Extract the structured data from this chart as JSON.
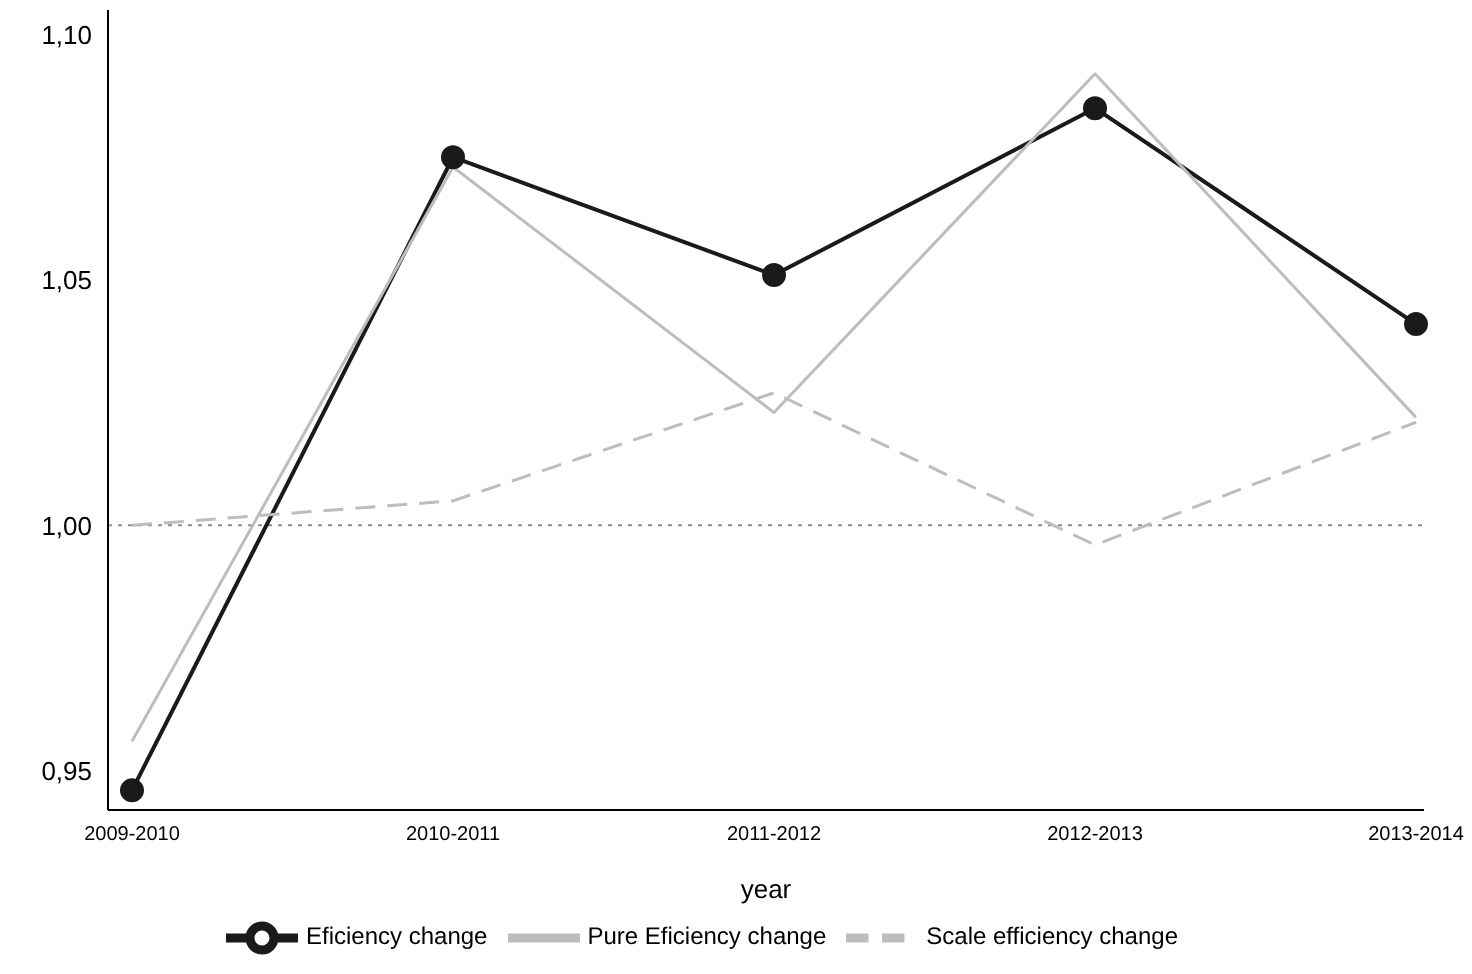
{
  "chart_data": {
    "type": "line",
    "xlabel": "year",
    "categories": [
      "2009-2010",
      "2010-2011",
      "2011-2012",
      "2012-2013",
      "2013-2014"
    ],
    "series": [
      {
        "name": "Eficiency change",
        "color": "#1a1a1a",
        "marker": "circle",
        "line_style": "solid",
        "values": [
          0.946,
          1.075,
          1.051,
          1.085,
          1.041
        ]
      },
      {
        "name": "Pure Eficiency change",
        "color": "#bdbdbd",
        "marker": "none",
        "line_style": "solid",
        "values": [
          0.956,
          1.073,
          1.023,
          1.092,
          1.022
        ]
      },
      {
        "name": "Scale efficiency change",
        "color": "#bdbdbd",
        "marker": "none",
        "line_style": "dashed",
        "values": [
          1.0,
          1.005,
          1.027,
          0.996,
          1.021
        ]
      }
    ],
    "ylim": [
      0.942,
      1.105
    ],
    "yticks": [
      {
        "value": 0.95,
        "label": "0,95"
      },
      {
        "value": 1.0,
        "label": "1,00"
      },
      {
        "value": 1.05,
        "label": "1,05"
      },
      {
        "value": 1.1,
        "label": "1,10"
      }
    ],
    "ref_lines": [
      {
        "axis": "y",
        "value": 1.0,
        "label": null,
        "color": "#8c8c8c",
        "line_style": "dotted"
      }
    ],
    "grid": false,
    "legend": "bottom"
  }
}
